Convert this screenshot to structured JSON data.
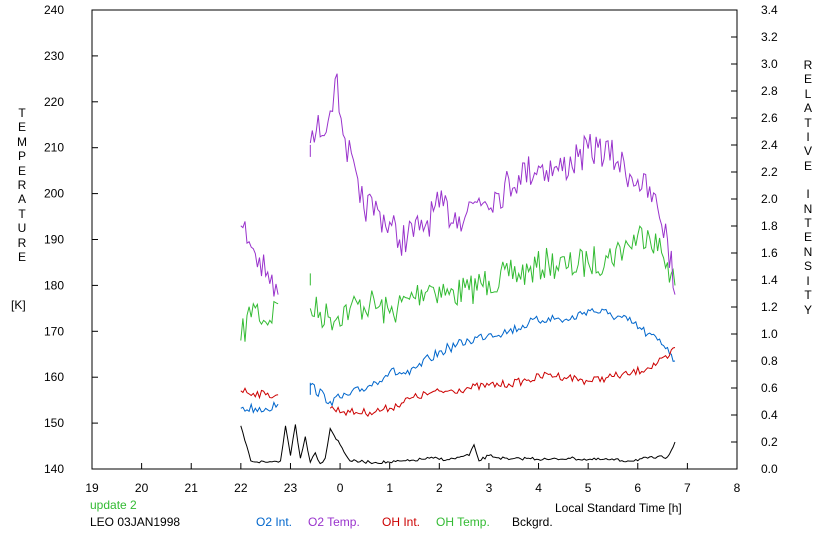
{
  "chart_data": {
    "type": "line",
    "xlabel": "Local Standard Time [h]",
    "ylabel_left": "TEMPERATURE",
    "ylabel_left_unit": "[K]",
    "ylabel_right": "RELATIVE INTENSITY",
    "x_ticks": [
      "19",
      "20",
      "21",
      "22",
      "23",
      "0",
      "1",
      "2",
      "3",
      "4",
      "5",
      "6",
      "7",
      "8"
    ],
    "x_range_hours": [
      19,
      32
    ],
    "y_left_range": [
      140,
      240
    ],
    "y_left_ticks": [
      "140",
      "150",
      "160",
      "170",
      "180",
      "190",
      "200",
      "210",
      "220",
      "230",
      "240"
    ],
    "y_right_range": [
      0.0,
      3.4
    ],
    "y_right_ticks": [
      "0.0",
      "0.2",
      "0.4",
      "0.6",
      "0.8",
      "1.0",
      "1.2",
      "1.4",
      "1.6",
      "1.8",
      "2.0",
      "2.2",
      "2.4",
      "2.6",
      "2.8",
      "3.0",
      "3.2",
      "3.4"
    ],
    "status_text": "update 2",
    "site_date": "LEO 03JAN1998",
    "legend_position": "bottom",
    "grid": false,
    "series": [
      {
        "name": "O2 Int.",
        "axis": "right",
        "color": "#0066cc",
        "x": [
          22.0,
          22.5,
          22.75,
          23.4,
          23.4,
          23.8,
          24.2,
          24.6,
          25.0,
          25.4,
          25.8,
          26.2,
          26.6,
          27.0,
          27.4,
          27.8,
          28.2,
          28.6,
          29.0,
          29.4,
          29.8,
          30.2,
          30.6,
          30.75
        ],
        "y": [
          0.45,
          0.45,
          0.48,
          0.55,
          0.62,
          0.5,
          0.55,
          0.62,
          0.72,
          0.7,
          0.82,
          0.9,
          0.95,
          1.0,
          1.02,
          1.08,
          1.12,
          1.1,
          1.18,
          1.15,
          1.1,
          1.0,
          0.9,
          0.8
        ]
      },
      {
        "name": "O2 Temp.",
        "axis": "left",
        "color": "#9933cc",
        "x": [
          22.0,
          22.25,
          22.5,
          22.75,
          23.4,
          23.4,
          23.8,
          23.9,
          24.1,
          24.4,
          24.8,
          25.2,
          25.6,
          26.0,
          26.4,
          26.8,
          27.2,
          27.6,
          28.0,
          28.4,
          28.8,
          29.2,
          29.6,
          30.0,
          30.4,
          30.6,
          30.75
        ],
        "y": [
          193,
          188,
          182,
          178,
          208,
          211,
          218,
          225,
          212,
          198,
          196,
          190,
          192,
          197,
          195,
          199,
          200,
          204,
          206,
          205,
          208,
          210,
          207,
          203,
          197,
          190,
          178
        ]
      },
      {
        "name": "OH Int.",
        "axis": "right",
        "color": "#cc0000",
        "x": [
          22.0,
          22.5,
          22.75,
          23.8,
          24.2,
          24.6,
          25.0,
          25.4,
          25.8,
          26.2,
          26.6,
          27.0,
          27.4,
          27.8,
          28.2,
          28.6,
          29.0,
          29.4,
          29.8,
          30.2,
          30.6,
          30.75
        ],
        "y": [
          0.58,
          0.55,
          0.55,
          0.45,
          0.42,
          0.42,
          0.45,
          0.52,
          0.56,
          0.58,
          0.6,
          0.62,
          0.63,
          0.66,
          0.7,
          0.68,
          0.65,
          0.68,
          0.7,
          0.75,
          0.82,
          0.9
        ]
      },
      {
        "name": "OH Temp.",
        "axis": "left",
        "color": "#33bb33",
        "x": [
          22.0,
          22.25,
          22.5,
          22.75,
          23.4,
          23.4,
          23.8,
          24.2,
          24.6,
          25.0,
          25.4,
          25.8,
          26.2,
          26.6,
          27.0,
          27.4,
          27.8,
          28.2,
          28.6,
          29.0,
          29.4,
          29.8,
          30.2,
          30.6,
          30.75
        ],
        "y": [
          168,
          176,
          172,
          176,
          180,
          175,
          173,
          175,
          176,
          174,
          177,
          180,
          178,
          179,
          181,
          182,
          183,
          185,
          184,
          185,
          186,
          189,
          192,
          185,
          180
        ]
      },
      {
        "name": "Bckgrd.",
        "axis": "right",
        "color": "#000000",
        "x": [
          22.0,
          22.2,
          22.5,
          22.8,
          22.9,
          23.0,
          23.1,
          23.2,
          23.3,
          23.4,
          23.5,
          23.6,
          23.7,
          23.8,
          24.2,
          24.6,
          25.0,
          25.4,
          25.8,
          26.2,
          26.6,
          26.7,
          26.8,
          27.0,
          27.4,
          27.8,
          28.2,
          28.6,
          29.0,
          29.4,
          29.8,
          30.2,
          30.6,
          30.75
        ],
        "y": [
          0.32,
          0.06,
          0.05,
          0.06,
          0.32,
          0.1,
          0.33,
          0.08,
          0.24,
          0.05,
          0.12,
          0.04,
          0.08,
          0.3,
          0.06,
          0.05,
          0.05,
          0.06,
          0.08,
          0.07,
          0.1,
          0.18,
          0.06,
          0.1,
          0.07,
          0.08,
          0.07,
          0.08,
          0.07,
          0.07,
          0.06,
          0.08,
          0.09,
          0.2
        ]
      }
    ]
  }
}
